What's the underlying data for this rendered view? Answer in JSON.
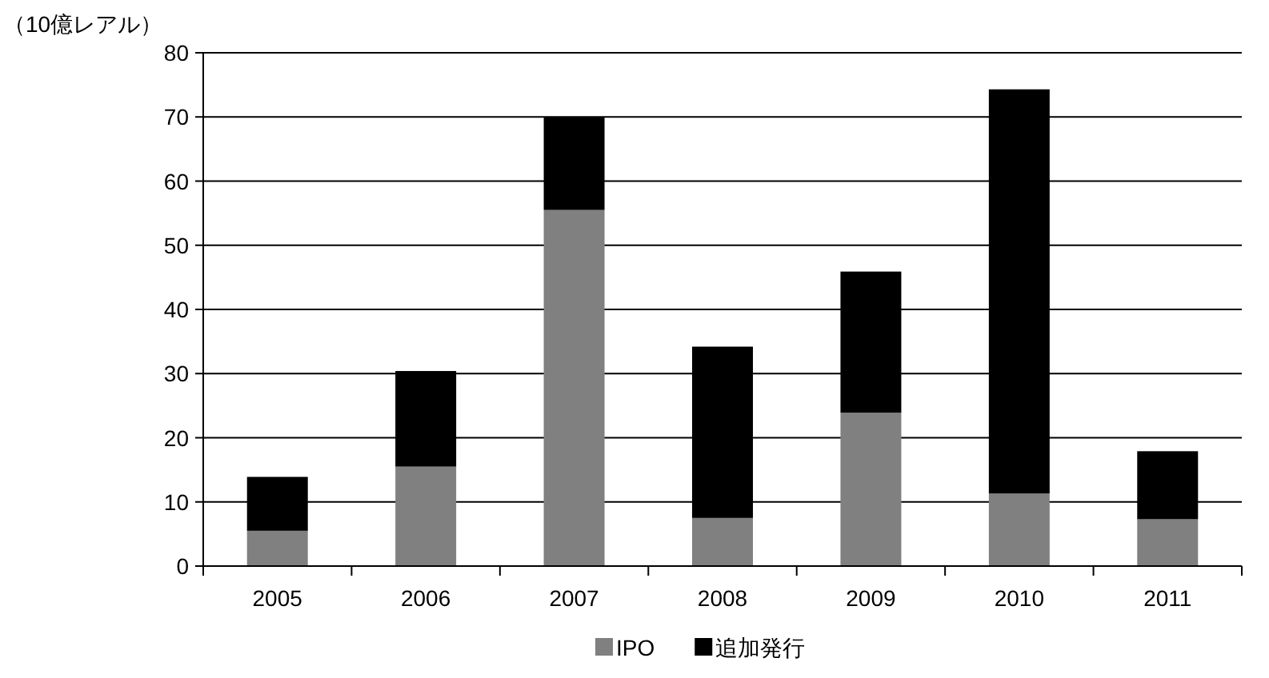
{
  "chart_data": {
    "type": "bar",
    "stacked": true,
    "ylabel": "（10億レアル）",
    "categories": [
      "2005",
      "2006",
      "2007",
      "2008",
      "2009",
      "2010",
      "2011"
    ],
    "series": [
      {
        "name": "IPO",
        "color": "#808080",
        "values": [
          5.5,
          15.5,
          55.5,
          7.5,
          23.9,
          11.3,
          7.3
        ]
      },
      {
        "name": "追加発行",
        "color": "#000000",
        "values": [
          8.4,
          14.9,
          14.4,
          26.7,
          22.0,
          63.0,
          10.6
        ]
      }
    ],
    "ylim": [
      0,
      80
    ],
    "yticks": [
      0,
      10,
      20,
      30,
      40,
      50,
      60,
      70,
      80
    ],
    "grid": "y",
    "legend": "bottom"
  }
}
